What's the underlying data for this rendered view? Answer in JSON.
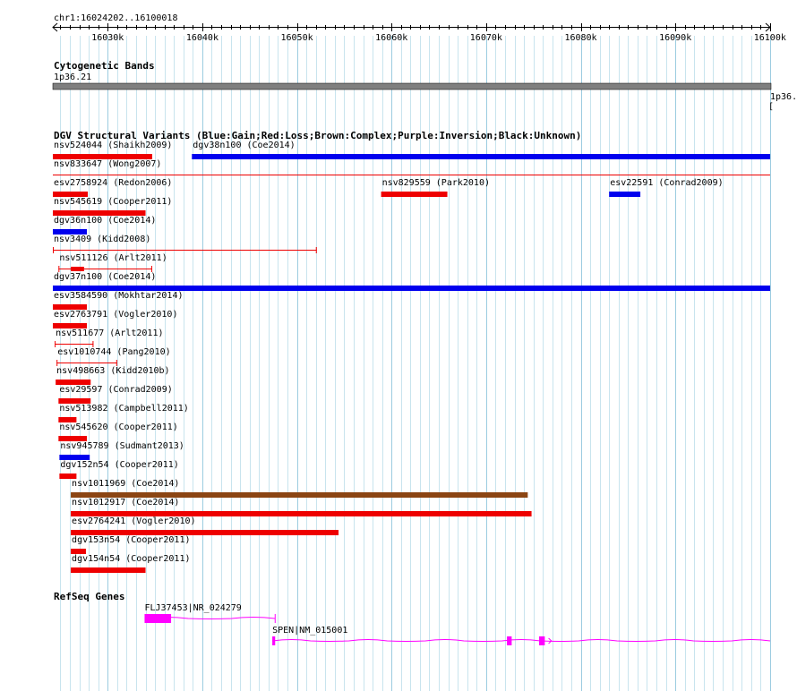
{
  "ruler": {
    "range_label": "chr1:16024202..16100018",
    "start": 16024202,
    "end": 16100018,
    "tick_labels": [
      "16030k",
      "16040k",
      "16050k",
      "16060k",
      "16070k",
      "16080k",
      "16090k",
      "16100k"
    ]
  },
  "tracks": {
    "cytoband": {
      "title": "Cytogenetic Bands",
      "band_label": "1p36.21",
      "edge_label": "1p36.",
      "edge_bracket": "[",
      "band_color": "#7f7f7f"
    },
    "dgv": {
      "title": "DGV Structural Variants (Blue:Gain;Red:Loss;Brown:Complex;Purple:Inversion;Black:Unknown)",
      "colors": {
        "gain": "#0000ee",
        "loss": "#ee0000",
        "complex": "#8b4513",
        "inversion": "#800080",
        "unknown": "#000000"
      },
      "features": [
        {
          "label": "nsv524044 (Shaikh2009)",
          "start": 16024202,
          "end": 16034700,
          "type": "loss",
          "style": "thick"
        },
        {
          "label": "dgv38n100 (Coe2014)",
          "start": 16038900,
          "end": 16100018,
          "type": "gain",
          "style": "thick"
        },
        {
          "label": "nsv833647 (Wong2007)",
          "start": 16024202,
          "end": 16100018,
          "type": "loss",
          "style": "thin"
        },
        {
          "label": "esv2758924 (Redon2006)",
          "start": 16024202,
          "end": 16027900,
          "type": "loss",
          "style": "thick"
        },
        {
          "label": "nsv829559 (Park2010)",
          "start": 16058900,
          "end": 16065900,
          "type": "loss",
          "style": "thick"
        },
        {
          "label": "esv22591 (Conrad2009)",
          "start": 16083000,
          "end": 16086300,
          "type": "gain",
          "style": "thick"
        },
        {
          "label": "nsv545619 (Cooper2011)",
          "start": 16024202,
          "end": 16034000,
          "type": "loss",
          "style": "thick"
        },
        {
          "label": "dgv36n100 (Coe2014)",
          "start": 16024202,
          "end": 16027800,
          "type": "gain",
          "style": "thick"
        },
        {
          "label": "nsv3409 (Kidd2008)",
          "start": 16024202,
          "end": 16052100,
          "type": "loss",
          "style": "span"
        },
        {
          "label": "nsv511126 (Arlt2011)",
          "start": 16024800,
          "end": 16034700,
          "type": "loss",
          "style": "span-core"
        },
        {
          "label": "dgv37n100 (Coe2014)",
          "start": 16024202,
          "end": 16100018,
          "type": "gain",
          "style": "thick"
        },
        {
          "label": "esv3584590 (Mokhtar2014)",
          "start": 16024202,
          "end": 16027800,
          "type": "loss",
          "style": "thick"
        },
        {
          "label": "esv2763791 (Vogler2010)",
          "start": 16024202,
          "end": 16027800,
          "type": "loss",
          "style": "thick"
        },
        {
          "label": "nsv511677 (Arlt2011)",
          "start": 16024400,
          "end": 16028500,
          "type": "loss",
          "style": "span"
        },
        {
          "label": "esv1010744 (Pang2010)",
          "start": 16024600,
          "end": 16031000,
          "type": "loss",
          "style": "span"
        },
        {
          "label": "nsv498663 (Kidd2010b)",
          "start": 16024500,
          "end": 16028200,
          "type": "loss",
          "style": "thick"
        },
        {
          "label": "esv29597 (Conrad2009)",
          "start": 16024800,
          "end": 16028200,
          "type": "loss",
          "style": "thick"
        },
        {
          "label": "nsv513982 (Campbell2011)",
          "start": 16024800,
          "end": 16026700,
          "type": "loss",
          "style": "thick"
        },
        {
          "label": "nsv545620 (Cooper2011)",
          "start": 16024800,
          "end": 16027800,
          "type": "loss",
          "style": "thick"
        },
        {
          "label": "nsv945789 (Sudmant2013)",
          "start": 16024900,
          "end": 16028100,
          "type": "gain",
          "style": "thick"
        },
        {
          "label": "dgv152n54 (Cooper2011)",
          "start": 16024900,
          "end": 16026700,
          "type": "loss",
          "style": "thick"
        },
        {
          "label": "nsv1011969 (Coe2014)",
          "start": 16026100,
          "end": 16074400,
          "type": "complex",
          "style": "thick"
        },
        {
          "label": "nsv1012917 (Coe2014)",
          "start": 16026100,
          "end": 16074800,
          "type": "loss",
          "style": "thick"
        },
        {
          "label": "esv2764241 (Vogler2010)",
          "start": 16026100,
          "end": 16054400,
          "type": "loss",
          "style": "thick"
        },
        {
          "label": "dgv153n54 (Cooper2011)",
          "start": 16026100,
          "end": 16027700,
          "type": "loss",
          "style": "thick"
        },
        {
          "label": "dgv154n54 (Cooper2011)",
          "start": 16026100,
          "end": 16034000,
          "type": "loss",
          "style": "thick"
        }
      ]
    },
    "refseq": {
      "title": "RefSeq Genes",
      "color": "#ff00ff",
      "genes": [
        {
          "label": "FLJ37453|NR_024279",
          "start": 16033900,
          "end": 16047700,
          "exons": [
            [
              16033900,
              16036700
            ]
          ],
          "strand": "+"
        },
        {
          "label": "SPEN|NM_015001",
          "start": 16047400,
          "end": 16100018,
          "exons": [
            [
              16047400,
              16047700
            ],
            [
              16072200,
              16072700
            ],
            [
              16075600,
              16076200
            ]
          ],
          "strand": "+"
        }
      ]
    }
  }
}
